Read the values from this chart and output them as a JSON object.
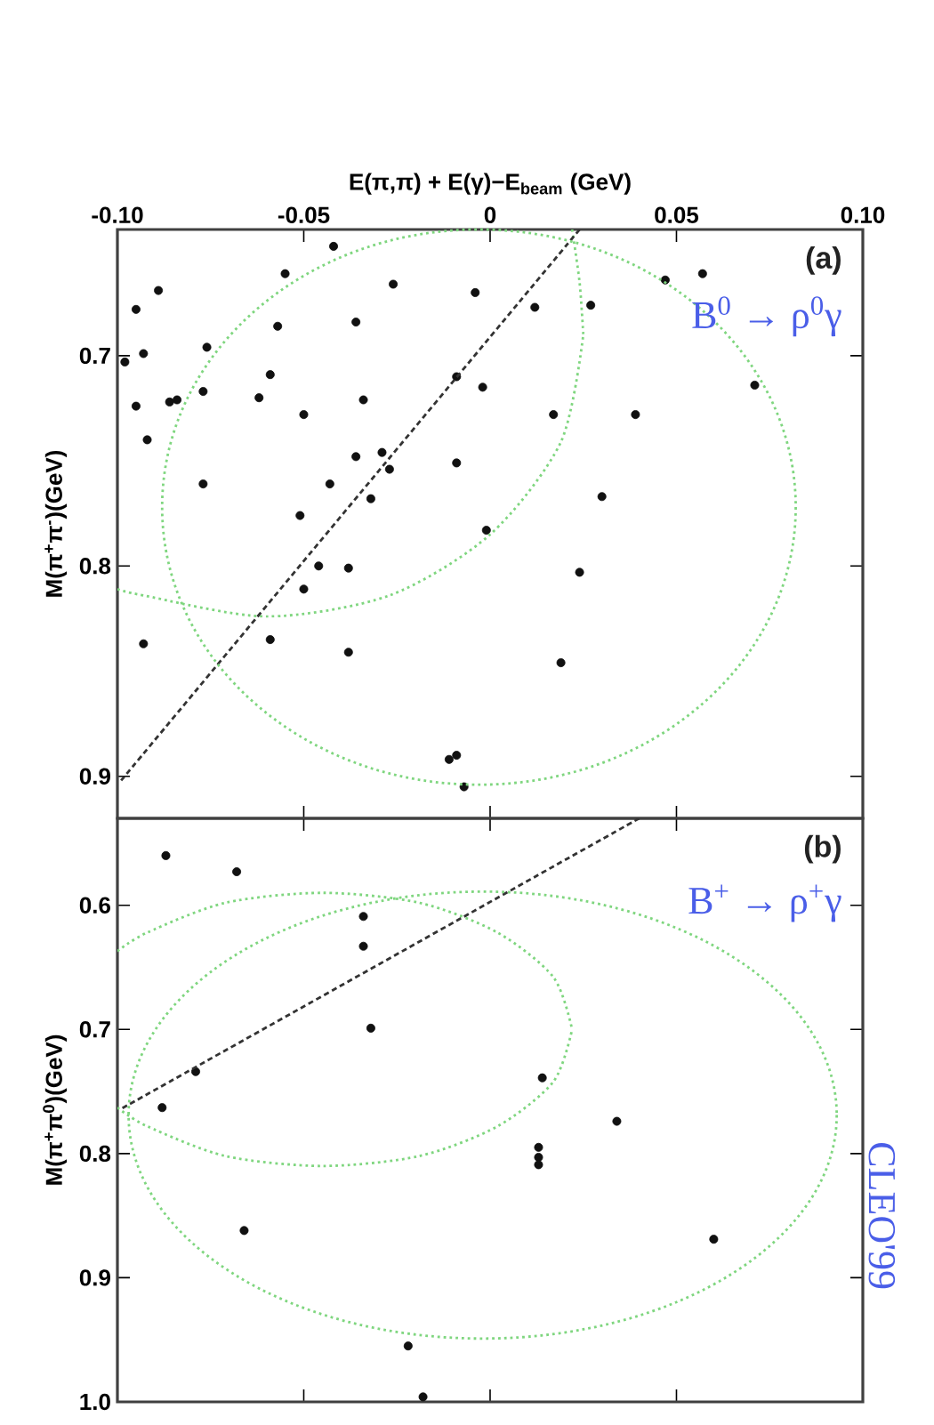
{
  "chart_data": [
    {
      "type": "scatter",
      "xlabel": "E(π,π) + E(γ)−E$_{beam}$ (GeV)",
      "ylabel": "M(π$^{+}$π$^{-}$)(GeV)",
      "xlim": [
        -0.1,
        0.1
      ],
      "ylim": [
        0.92,
        0.64
      ],
      "yticks": [
        0.7,
        0.8,
        0.9
      ],
      "xticks": [
        {
          "value": -0.1,
          "label": "-0.10"
        },
        -0.05,
        0,
        0.05,
        {
          "value": 0.1,
          "label": "0.10"
        }
      ],
      "annotations": [
        "(a)",
        "B$^{0}$ → ρ$^{0}$γ"
      ],
      "series": [
        {
          "marker": "circle",
          "color": "#111111",
          "values": [
            0.648,
            0.661,
            0.666,
            0.67,
            0.669,
            0.678,
            0.677,
            0.676,
            0.664,
            0.661,
            0.686,
            0.684,
            0.696,
            0.699,
            0.703,
            0.709,
            0.717,
            0.72,
            0.722,
            0.721,
            0.724,
            0.721,
            0.71,
            0.715,
            0.714,
            0.728,
            0.728,
            0.728,
            0.74,
            0.748,
            0.746,
            0.754,
            0.751,
            0.761,
            0.768,
            0.761,
            0.767,
            0.776,
            0.783,
            0.8,
            0.801,
            0.803,
            0.811,
            0.837,
            0.835,
            0.841,
            0.846,
            0.892,
            0.89,
            0.905
          ],
          "x": [
            -0.042,
            -0.055,
            -0.026,
            -0.004,
            -0.089,
            -0.095,
            0.012,
            0.027,
            0.047,
            0.057,
            -0.057,
            -0.036,
            -0.076,
            -0.093,
            -0.098,
            -0.059,
            -0.077,
            -0.062,
            -0.086,
            -0.084,
            -0.095,
            -0.034,
            -0.009,
            -0.002,
            0.071,
            -0.05,
            0.017,
            0.039,
            -0.092,
            -0.036,
            -0.029,
            -0.027,
            -0.009,
            -0.043,
            -0.032,
            -0.077,
            0.03,
            -0.051,
            -0.001,
            -0.046,
            -0.038,
            0.024,
            -0.05,
            -0.093,
            -0.059,
            -0.038,
            0.019,
            -0.011,
            -0.009,
            -0.007
          ]
        },
        {
          "type": "line",
          "line_style": "dotted",
          "color": "#7fd67f",
          "values": [
            0.811,
            0.814,
            0.824,
            0.814,
            0.785,
            0.741,
            0.69
          ],
          "x": [
            -0.1,
            -0.093,
            -0.06,
            -0.027,
            0.0,
            0.019,
            0.025
          ]
        },
        {
          "type": "line",
          "line_style": "dotted",
          "color": "#7fd67f",
          "values": [
            0.64,
            0.665,
            0.69
          ],
          "x": [
            0.022,
            0.024,
            0.025
          ]
        },
        {
          "type": "line",
          "line_style": "dashed",
          "color": "#333333",
          "values": [
            0.64,
            0.902
          ],
          "x": [
            0.024,
            -0.099
          ]
        }
      ]
    },
    {
      "type": "scatter",
      "ylabel": "M(π$^{+}$π$^{0}$)(GeV)",
      "ylim": [
        1.0,
        0.53
      ],
      "xlim": [
        -0.1,
        0.1
      ],
      "yticks": [
        0.6,
        0.7,
        0.8,
        0.9,
        {
          "value": 1.0,
          "label": "1.0"
        }
      ],
      "xticks": [
        -0.1,
        -0.05,
        0,
        0.05,
        0.1
      ],
      "tick_labels": "y",
      "annotations": [
        "(b)",
        "B$^{+}$ → ρ$^{+}$γ",
        "CLEO'99"
      ],
      "series": [
        {
          "marker": "circle",
          "color": "#111111",
          "values": [
            0.56,
            0.573,
            0.609,
            0.633,
            0.699,
            0.734,
            0.763,
            0.739,
            0.774,
            0.795,
            0.803,
            0.809,
            0.862,
            0.869,
            0.955,
            0.996
          ],
          "x": [
            -0.087,
            -0.068,
            -0.034,
            -0.034,
            -0.032,
            -0.079,
            -0.088,
            0.014,
            0.034,
            0.013,
            0.013,
            0.013,
            -0.066,
            0.06,
            -0.022,
            -0.018
          ]
        },
        {
          "type": "line",
          "line_style": "dotted",
          "color": "#7fd67f",
          "values": [
            0.637,
            0.622,
            0.598,
            0.59,
            0.598,
            0.622,
            0.658,
            0.7
          ],
          "x": [
            -0.1,
            -0.092,
            -0.071,
            -0.045,
            -0.019,
            0.002,
            0.017,
            0.022
          ]
        },
        {
          "type": "line",
          "line_style": "dotted",
          "color": "#7fd67f",
          "values": [
            0.763,
            0.778,
            0.802,
            0.81,
            0.802,
            0.778,
            0.742,
            0.7
          ],
          "x": [
            -0.1,
            -0.092,
            -0.071,
            -0.045,
            -0.019,
            0.002,
            0.017,
            0.022
          ]
        },
        {
          "type": "line",
          "line_style": "dashed",
          "color": "#333333",
          "values": [
            0.53,
            0.764
          ],
          "x": [
            0.04,
            -0.099
          ]
        }
      ]
    }
  ]
}
